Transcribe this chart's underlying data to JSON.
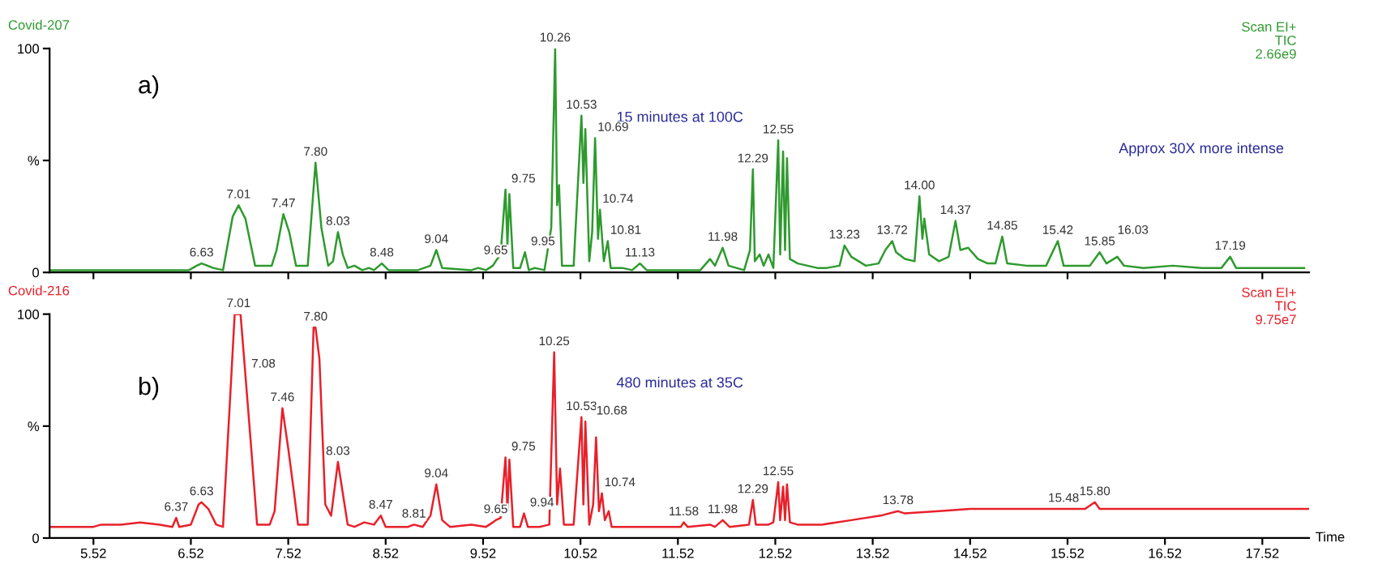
{
  "chart_data": [
    {
      "type": "line",
      "title": "Covid-207",
      "tick_labels": "y",
      "legend": false,
      "grid": false,
      "marker": "none",
      "line_style": "solid",
      "xlim": [
        5.07,
        18.0
      ],
      "ylim": [
        0,
        100
      ],
      "yticks": [
        0,
        {
          "value": 50,
          "label": "%"
        },
        100
      ],
      "xticks": [
        5.52,
        6.52,
        7.52,
        8.52,
        9.52,
        10.52,
        11.52,
        12.52,
        13.52,
        14.52,
        15.52,
        16.52,
        17.52
      ],
      "series": [
        {
          "color": "#2e9a2e",
          "x": [
            5.07,
            6.5,
            6.58,
            6.63,
            6.75,
            6.85,
            6.95,
            7.01,
            7.08,
            7.18,
            7.35,
            7.4,
            7.47,
            7.53,
            7.6,
            7.72,
            7.8,
            7.86,
            7.93,
            7.98,
            8.03,
            8.08,
            8.13,
            8.2,
            8.28,
            8.35,
            8.4,
            8.48,
            8.55,
            8.85,
            8.98,
            9.04,
            9.1,
            9.4,
            9.47,
            9.55,
            9.62,
            9.65,
            9.7,
            9.75,
            9.77,
            9.79,
            9.83,
            9.9,
            9.95,
            9.99,
            10.05,
            10.15,
            10.22,
            10.26,
            10.28,
            10.3,
            10.33,
            10.45,
            10.53,
            10.55,
            10.57,
            10.61,
            10.64,
            10.67,
            10.7,
            10.72,
            10.76,
            10.8,
            10.83,
            10.95,
            11.05,
            11.13,
            11.2,
            11.5,
            11.75,
            11.85,
            11.9,
            11.98,
            12.04,
            12.2,
            12.26,
            12.29,
            12.31,
            12.36,
            12.4,
            12.45,
            12.5,
            12.55,
            12.57,
            12.6,
            12.62,
            12.64,
            12.67,
            12.75,
            12.85,
            12.95,
            13.05,
            13.18,
            13.23,
            13.3,
            13.45,
            13.58,
            13.65,
            13.72,
            13.76,
            13.85,
            13.95,
            14.0,
            14.03,
            14.05,
            14.1,
            14.2,
            14.3,
            14.37,
            14.42,
            14.5,
            14.6,
            14.7,
            14.78,
            14.85,
            14.9,
            15.1,
            15.3,
            15.42,
            15.48,
            15.75,
            15.85,
            15.92,
            16.03,
            16.1,
            16.3,
            16.6,
            16.9,
            17.1,
            17.19,
            17.25,
            17.6,
            17.95
          ],
          "values": [
            1,
            1,
            3,
            4,
            2,
            1,
            25,
            30,
            24,
            3,
            3,
            10,
            26,
            18,
            3,
            3,
            49,
            20,
            3,
            5,
            18,
            8,
            2,
            3,
            1,
            2,
            1,
            4,
            1,
            1,
            3,
            10,
            2,
            1,
            2,
            1,
            3,
            5,
            8,
            37,
            12,
            35,
            2,
            2,
            9,
            1,
            2,
            1,
            20,
            100,
            30,
            39,
            3,
            3,
            70,
            40,
            64,
            5,
            18,
            60,
            15,
            28,
            5,
            14,
            2,
            2,
            1,
            4,
            1,
            1,
            1,
            6,
            3,
            11,
            3,
            1,
            10,
            46,
            5,
            8,
            3,
            8,
            2,
            59,
            8,
            54,
            10,
            51,
            6,
            4,
            3,
            2,
            2,
            3,
            12,
            7,
            3,
            4,
            10,
            14,
            9,
            6,
            5,
            34,
            15,
            24,
            8,
            5,
            7,
            23,
            10,
            11,
            6,
            4,
            4,
            16,
            4,
            3,
            3,
            14,
            3,
            3,
            9,
            4,
            7,
            3,
            2,
            3,
            2,
            2,
            7,
            2,
            2,
            2
          ]
        }
      ],
      "annotations": [
        "a)",
        "15 minutes at 100C",
        "Approx 30X more intense",
        "Scan EI+\nTIC\n2.66e9",
        {
          "text": "6.63",
          "x": 6.63,
          "y": 4
        },
        {
          "text": "7.01",
          "x": 7.01,
          "y": 30
        },
        {
          "text": "7.47",
          "x": 7.47,
          "y": 26
        },
        {
          "text": "7.80",
          "x": 7.8,
          "y": 49
        },
        {
          "text": "8.03",
          "x": 8.03,
          "y": 18
        },
        {
          "text": "8.48",
          "x": 8.48,
          "y": 4
        },
        {
          "text": "9.04",
          "x": 9.04,
          "y": 10
        },
        {
          "text": "9.65",
          "x": 9.65,
          "y": 5
        },
        {
          "text": "9.75",
          "x": 9.75,
          "y": 37
        },
        {
          "text": "9.95",
          "x": 9.95,
          "y": 9
        },
        {
          "text": "10.26",
          "x": 10.26,
          "y": 100
        },
        {
          "text": "10.53",
          "x": 10.53,
          "y": 70
        },
        {
          "text": "10.69",
          "x": 10.67,
          "y": 60
        },
        {
          "text": "10.74",
          "x": 10.72,
          "y": 28
        },
        {
          "text": "10.81",
          "x": 10.8,
          "y": 14
        },
        {
          "text": "11.13",
          "x": 11.13,
          "y": 4
        },
        {
          "text": "11.98",
          "x": 11.98,
          "y": 11
        },
        {
          "text": "12.29",
          "x": 12.29,
          "y": 46
        },
        {
          "text": "12.55",
          "x": 12.55,
          "y": 59
        },
        {
          "text": "13.23",
          "x": 13.23,
          "y": 12
        },
        {
          "text": "13.72",
          "x": 13.72,
          "y": 14
        },
        {
          "text": "14.00",
          "x": 14.0,
          "y": 34
        },
        {
          "text": "14.37",
          "x": 14.37,
          "y": 23
        },
        {
          "text": "14.85",
          "x": 14.85,
          "y": 16
        },
        {
          "text": "15.42",
          "x": 15.42,
          "y": 14
        },
        {
          "text": "15.85",
          "x": 15.85,
          "y": 9
        },
        {
          "text": "16.03",
          "x": 16.03,
          "y": 7
        },
        {
          "text": "17.19",
          "x": 17.19,
          "y": 7
        }
      ]
    },
    {
      "type": "line",
      "title": "Covid-216",
      "xlabel": "Time",
      "legend": false,
      "grid": false,
      "marker": "none",
      "line_style": "solid",
      "xlim": [
        5.07,
        18.0
      ],
      "ylim": [
        0,
        100
      ],
      "yticks": [
        0,
        {
          "value": 50,
          "label": "%"
        },
        100
      ],
      "xticks": [
        5.52,
        6.52,
        7.52,
        8.52,
        9.52,
        10.52,
        11.52,
        12.52,
        13.52,
        14.52,
        15.52,
        16.52,
        17.52
      ],
      "series": [
        {
          "color": "#e8202a",
          "x": [
            5.07,
            5.52,
            5.6,
            5.8,
            6.0,
            6.2,
            6.33,
            6.37,
            6.4,
            6.52,
            6.6,
            6.63,
            6.7,
            6.78,
            6.85,
            6.92,
            6.97,
            7.03,
            7.08,
            7.14,
            7.2,
            7.33,
            7.38,
            7.46,
            7.52,
            7.58,
            7.62,
            7.72,
            7.78,
            7.8,
            7.84,
            7.9,
            7.96,
            8.03,
            8.08,
            8.13,
            8.2,
            8.3,
            8.4,
            8.47,
            8.52,
            8.75,
            8.81,
            8.9,
            8.98,
            9.04,
            9.1,
            9.18,
            9.4,
            9.55,
            9.62,
            9.65,
            9.7,
            9.75,
            9.77,
            9.79,
            9.83,
            9.9,
            9.94,
            9.98,
            10.1,
            10.2,
            10.25,
            10.28,
            10.31,
            10.35,
            10.45,
            10.53,
            10.55,
            10.57,
            10.61,
            10.65,
            10.68,
            10.71,
            10.74,
            10.77,
            10.81,
            10.84,
            11.0,
            11.3,
            11.55,
            11.58,
            11.62,
            11.85,
            11.9,
            11.98,
            12.05,
            12.25,
            12.29,
            12.32,
            12.45,
            12.5,
            12.55,
            12.57,
            12.6,
            12.62,
            12.64,
            12.67,
            12.75,
            13.0,
            13.3,
            13.6,
            13.78,
            13.85,
            14.2,
            14.52,
            15.0,
            15.48,
            15.7,
            15.8,
            15.85,
            16.5,
            17.0,
            17.52,
            18.0
          ],
          "values": [
            5,
            5,
            6,
            6,
            7,
            6,
            5,
            9,
            5,
            6,
            15,
            16,
            13,
            6,
            5,
            60,
            100,
            100,
            73,
            40,
            6,
            6,
            12,
            58,
            40,
            20,
            6,
            6,
            94,
            94,
            80,
            15,
            10,
            34,
            20,
            6,
            5,
            7,
            6,
            10,
            5,
            5,
            6,
            5,
            10,
            24,
            8,
            5,
            6,
            5,
            7,
            8,
            9,
            36,
            12,
            35,
            5,
            5,
            11,
            5,
            5,
            6,
            83,
            15,
            31,
            6,
            6,
            54,
            15,
            52,
            6,
            15,
            45,
            12,
            20,
            8,
            12,
            5,
            5,
            5,
            5,
            7,
            5,
            6,
            5,
            8,
            5,
            6,
            17,
            6,
            6,
            7,
            25,
            8,
            23,
            8,
            24,
            7,
            6,
            6,
            8,
            10,
            12,
            11,
            12,
            13,
            13,
            13,
            13,
            16,
            13,
            13,
            13,
            13,
            13
          ]
        }
      ],
      "annotations": [
        "b)",
        "480 minutes at 35C",
        "Scan EI+\nTIC\n9.75e7",
        {
          "text": "6.37",
          "x": 6.37,
          "y": 9
        },
        {
          "text": "6.63",
          "x": 6.63,
          "y": 16
        },
        {
          "text": "7.01",
          "x": 7.01,
          "y": 100
        },
        {
          "text": "7.08",
          "x": 7.08,
          "y": 73
        },
        {
          "text": "7.46",
          "x": 7.46,
          "y": 58
        },
        {
          "text": "7.80",
          "x": 7.8,
          "y": 94
        },
        {
          "text": "8.03",
          "x": 8.03,
          "y": 34
        },
        {
          "text": "8.47",
          "x": 8.47,
          "y": 10
        },
        {
          "text": "8.81",
          "x": 8.81,
          "y": 6
        },
        {
          "text": "9.04",
          "x": 9.04,
          "y": 24
        },
        {
          "text": "9.65",
          "x": 9.65,
          "y": 8
        },
        {
          "text": "9.75",
          "x": 9.75,
          "y": 36
        },
        {
          "text": "9.94",
          "x": 9.94,
          "y": 11
        },
        {
          "text": "10.25",
          "x": 10.25,
          "y": 83
        },
        {
          "text": "10.53",
          "x": 10.53,
          "y": 54
        },
        {
          "text": "10.68",
          "x": 10.68,
          "y": 45
        },
        {
          "text": "10.74",
          "x": 10.74,
          "y": 20
        },
        {
          "text": "11.58",
          "x": 11.58,
          "y": 7
        },
        {
          "text": "11.98",
          "x": 11.98,
          "y": 8
        },
        {
          "text": "12.29",
          "x": 12.29,
          "y": 17
        },
        {
          "text": "12.55",
          "x": 12.55,
          "y": 25
        },
        {
          "text": "13.78",
          "x": 13.78,
          "y": 12
        },
        {
          "text": "15.48",
          "x": 15.48,
          "y": 13
        },
        {
          "text": "15.80",
          "x": 15.8,
          "y": 16
        }
      ]
    }
  ]
}
